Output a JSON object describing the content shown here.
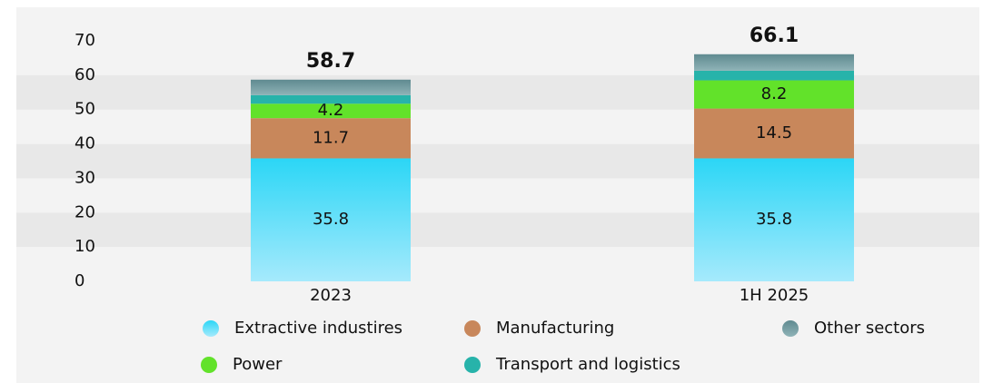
{
  "chart_data": {
    "type": "stacked_bar",
    "categories": [
      "2023",
      "1H 2025"
    ],
    "series": [
      {
        "name": "Extractive industires",
        "color": "#2bd6f6",
        "values": [
          35.8,
          35.8
        ],
        "labels": true
      },
      {
        "name": "Manufacturing",
        "color": "#c8875b",
        "values": [
          11.7,
          14.5
        ],
        "labels": true
      },
      {
        "name": "Power",
        "color": "#62e22a",
        "values": [
          4.2,
          8.2
        ],
        "labels": true
      },
      {
        "name": "Transport and logistics",
        "color": "#27b3aa",
        "values": [
          2.5,
          2.8
        ],
        "labels": false
      },
      {
        "name": "Other sectors",
        "color": "#6f979c",
        "values": [
          4.5,
          4.8
        ],
        "labels": false
      }
    ],
    "totals": [
      58.7,
      66.1
    ],
    "ylim": [
      0,
      70
    ],
    "yticks": [
      0,
      10,
      20,
      30,
      40,
      50,
      60,
      70
    ],
    "grid": true
  }
}
